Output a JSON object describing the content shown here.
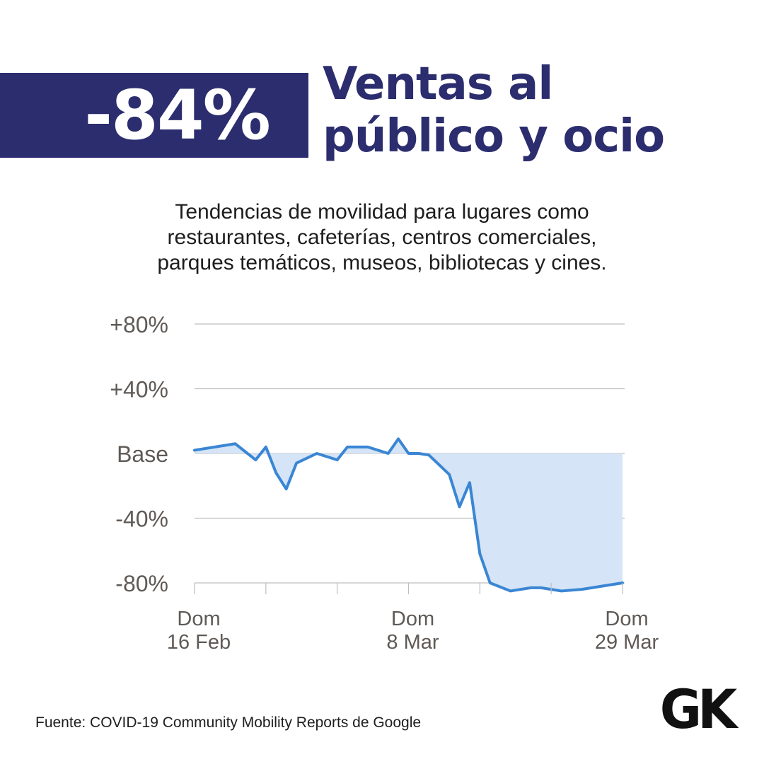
{
  "headline": {
    "value": "-84%",
    "title_line1": "Ventas al",
    "title_line2": "público y ocio"
  },
  "subtitle": {
    "line1": "Tendencias de movilidad para lugares como",
    "line2": "restaurantes, cafeterías, centros comerciales,",
    "line3": "parques temáticos, museos, bibliotecas y cines."
  },
  "source": "Fuente: COVID-19 Community Mobility Reports de Google",
  "logo": "GK",
  "colors": {
    "brand": "#2b2d6e",
    "line": "#3a86d4",
    "area": "#d5e4f6",
    "grid": "#bfbfbf",
    "axis_text": "#5f5a56"
  },
  "chart_data": {
    "type": "area",
    "y_ticks": [
      {
        "value": 80,
        "label": "+80%"
      },
      {
        "value": 40,
        "label": "+40%"
      },
      {
        "value": 0,
        "label": "Base"
      },
      {
        "value": -40,
        "label": "-40%"
      },
      {
        "value": -80,
        "label": "-80%"
      }
    ],
    "ylim": [
      -80,
      80
    ],
    "x_labels": [
      {
        "day": 0,
        "line1": "Dom",
        "line2": "16 Feb"
      },
      {
        "day": 21,
        "line1": "Dom",
        "line2": "8 Mar"
      },
      {
        "day": 42,
        "line1": "Dom",
        "line2": "29 Mar"
      }
    ],
    "x_range": [
      0,
      42
    ],
    "x_ticks": [
      0,
      7,
      14,
      21,
      28,
      35,
      42
    ],
    "series": [
      {
        "x": [
          0,
          4,
          6,
          7,
          8,
          9,
          10,
          12,
          14,
          15,
          17,
          19,
          20,
          21,
          22,
          23,
          25,
          26,
          27,
          28,
          29,
          31,
          33,
          34,
          36,
          38,
          42
        ],
        "values": [
          2,
          6,
          -4,
          4,
          -12,
          -22,
          -6,
          0,
          -4,
          4,
          4,
          0,
          9,
          0,
          0,
          -1,
          -13,
          -33,
          -18,
          -62,
          -80,
          -85,
          -83,
          -83,
          -85,
          -84,
          -80
        ]
      }
    ]
  }
}
